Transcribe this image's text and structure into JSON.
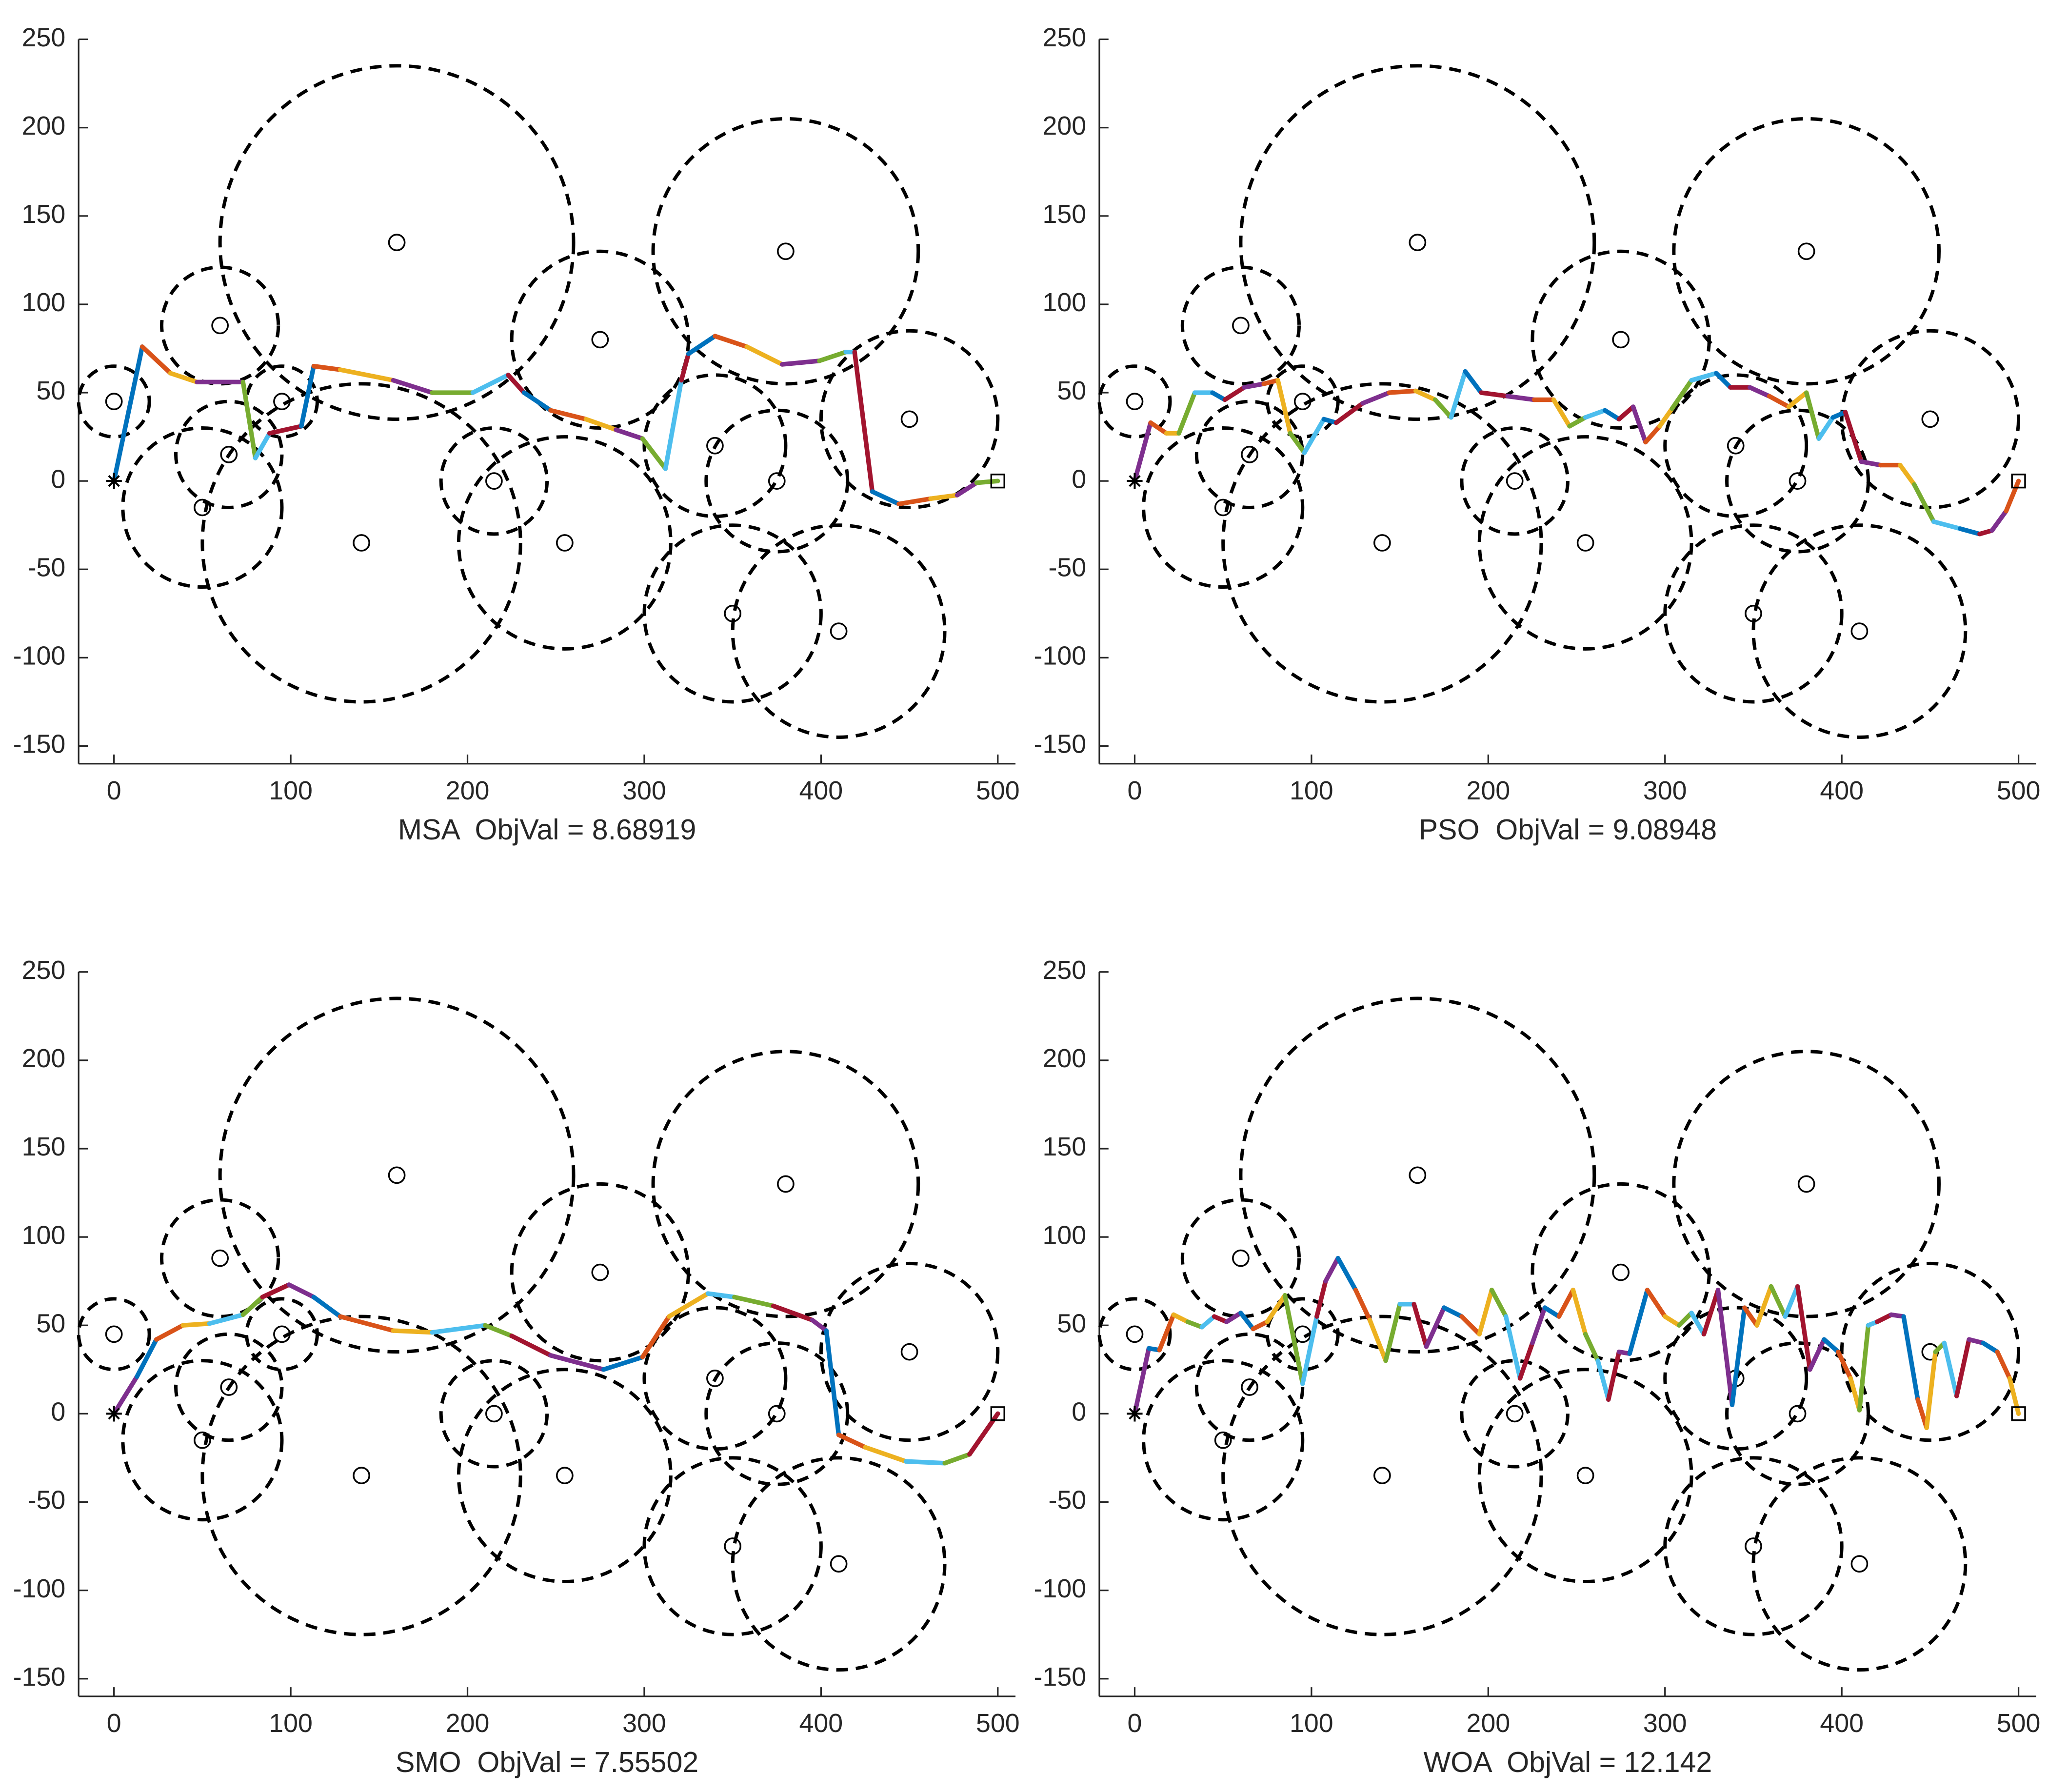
{
  "chart_data": [
    {
      "type": "line",
      "xlabel": "MSA  ObjVal = 8.68919",
      "x": [
        0,
        16,
        32,
        47,
        73,
        80,
        88,
        106,
        113,
        128,
        158,
        180,
        203,
        223,
        232,
        247,
        267,
        284,
        299,
        312,
        321,
        325,
        340,
        358,
        378,
        399,
        414,
        419,
        429,
        444,
        462,
        477,
        488,
        500
      ],
      "values": [
        0,
        76,
        61,
        56,
        56,
        13,
        27,
        31,
        65,
        63,
        57,
        50,
        50,
        60,
        50,
        40,
        35,
        29,
        24,
        7,
        57,
        72,
        82,
        76,
        66,
        68,
        73,
        73,
        -6,
        -13,
        -10,
        -8,
        -1,
        0
      ],
      "colors": [
        "#0072BD",
        "#D95319",
        "#EDB120",
        "#7E2F8E",
        "#77AC30",
        "#4DBEEE",
        "#A2142F"
      ],
      "obstacles": [
        {
          "x": 0,
          "y": 45,
          "r": 20
        },
        {
          "x": 60,
          "y": 88,
          "r": 33
        },
        {
          "x": 160,
          "y": 135,
          "r": 100
        },
        {
          "x": 95,
          "y": 45,
          "r": 20
        },
        {
          "x": 65,
          "y": 15,
          "r": 30
        },
        {
          "x": 50,
          "y": -15,
          "r": 45
        },
        {
          "x": 140,
          "y": -35,
          "r": 90
        },
        {
          "x": 215,
          "y": 0,
          "r": 30
        },
        {
          "x": 255,
          "y": -35,
          "r": 60
        },
        {
          "x": 275,
          "y": 80,
          "r": 50
        },
        {
          "x": 380,
          "y": 130,
          "r": 75
        },
        {
          "x": 340,
          "y": 20,
          "r": 40
        },
        {
          "x": 375,
          "y": 0,
          "r": 40
        },
        {
          "x": 350,
          "y": -75,
          "r": 50
        },
        {
          "x": 410,
          "y": -85,
          "r": 60
        },
        {
          "x": 450,
          "y": 35,
          "r": 50
        }
      ],
      "xlim": [
        -20,
        510
      ],
      "ylim": [
        -160,
        250
      ],
      "xticks": [
        0,
        100,
        200,
        300,
        400,
        500
      ],
      "yticks": [
        -150,
        -100,
        -50,
        0,
        50,
        100,
        150,
        200,
        250
      ]
    },
    {
      "type": "line",
      "xlabel": "PSO  ObjVal = 9.08948",
      "x": [
        0,
        9,
        18,
        25,
        34,
        44,
        51,
        62,
        73,
        81,
        88,
        96,
        107,
        114,
        129,
        144,
        159,
        170,
        179,
        187,
        196,
        211,
        226,
        237,
        246,
        255,
        266,
        274,
        282,
        289,
        297,
        304,
        315,
        329,
        337,
        348,
        359,
        370,
        380,
        387,
        395,
        402,
        411,
        422,
        433,
        441,
        452,
        467,
        478,
        485,
        493,
        500
      ],
      "values": [
        0,
        33,
        27,
        27,
        50,
        50,
        46,
        53,
        55,
        57,
        27,
        16,
        35,
        33,
        44,
        50,
        51,
        46,
        36,
        62,
        50,
        48,
        46,
        46,
        31,
        36,
        40,
        35,
        42,
        22,
        31,
        41,
        57,
        61,
        53,
        53,
        48,
        42,
        50,
        24,
        36,
        39,
        11,
        9,
        9,
        -2,
        -23,
        -27,
        -30,
        -28,
        -17,
        0
      ],
      "colors": [
        "#7E2F8E",
        "#D95319",
        "#EDB120",
        "#77AC30",
        "#4DBEEE",
        "#0072BD",
        "#A2142F"
      ],
      "obstacles": [
        {
          "x": 0,
          "y": 45,
          "r": 20
        },
        {
          "x": 60,
          "y": 88,
          "r": 33
        },
        {
          "x": 160,
          "y": 135,
          "r": 100
        },
        {
          "x": 95,
          "y": 45,
          "r": 20
        },
        {
          "x": 65,
          "y": 15,
          "r": 30
        },
        {
          "x": 50,
          "y": -15,
          "r": 45
        },
        {
          "x": 140,
          "y": -35,
          "r": 90
        },
        {
          "x": 215,
          "y": 0,
          "r": 30
        },
        {
          "x": 255,
          "y": -35,
          "r": 60
        },
        {
          "x": 275,
          "y": 80,
          "r": 50
        },
        {
          "x": 380,
          "y": 130,
          "r": 75
        },
        {
          "x": 340,
          "y": 20,
          "r": 40
        },
        {
          "x": 375,
          "y": 0,
          "r": 40
        },
        {
          "x": 350,
          "y": -75,
          "r": 50
        },
        {
          "x": 410,
          "y": -85,
          "r": 60
        },
        {
          "x": 450,
          "y": 35,
          "r": 50
        }
      ],
      "xlim": [
        -20,
        510
      ],
      "ylim": [
        -160,
        250
      ],
      "xticks": [
        0,
        100,
        200,
        300,
        400,
        500
      ],
      "yticks": [
        -150,
        -100,
        -50,
        0,
        50,
        100,
        150,
        200,
        250
      ]
    },
    {
      "type": "line",
      "xlabel": "SMO  ObjVal = 7.55502",
      "x": [
        0,
        13,
        24,
        39,
        54,
        73,
        84,
        99,
        113,
        128,
        158,
        180,
        210,
        225,
        247,
        277,
        299,
        314,
        336,
        351,
        373,
        395,
        403,
        410,
        425,
        448,
        470,
        484,
        500
      ],
      "values": [
        0,
        21,
        42,
        50,
        51,
        56,
        66,
        73,
        66,
        55,
        47,
        46,
        50,
        44,
        33,
        25,
        32,
        55,
        68,
        66,
        61,
        53,
        47,
        -12,
        -19,
        -27,
        -28,
        -23,
        0
      ],
      "colors": [
        "#7E2F8E",
        "#0072BD",
        "#D95319",
        "#EDB120",
        "#4DBEEE",
        "#77AC30",
        "#A2142F"
      ],
      "obstacles": [
        {
          "x": 0,
          "y": 45,
          "r": 20
        },
        {
          "x": 60,
          "y": 88,
          "r": 33
        },
        {
          "x": 160,
          "y": 135,
          "r": 100
        },
        {
          "x": 95,
          "y": 45,
          "r": 20
        },
        {
          "x": 65,
          "y": 15,
          "r": 30
        },
        {
          "x": 50,
          "y": -15,
          "r": 45
        },
        {
          "x": 140,
          "y": -35,
          "r": 90
        },
        {
          "x": 215,
          "y": 0,
          "r": 30
        },
        {
          "x": 255,
          "y": -35,
          "r": 60
        },
        {
          "x": 275,
          "y": 80,
          "r": 50
        },
        {
          "x": 380,
          "y": 130,
          "r": 75
        },
        {
          "x": 340,
          "y": 20,
          "r": 40
        },
        {
          "x": 375,
          "y": 0,
          "r": 40
        },
        {
          "x": 350,
          "y": -75,
          "r": 50
        },
        {
          "x": 410,
          "y": -85,
          "r": 60
        },
        {
          "x": 450,
          "y": 35,
          "r": 50
        }
      ],
      "xlim": [
        -20,
        510
      ],
      "ylim": [
        -160,
        250
      ],
      "xticks": [
        0,
        100,
        200,
        300,
        400,
        500
      ],
      "yticks": [
        -150,
        -100,
        -50,
        0,
        50,
        100,
        150,
        200,
        250
      ]
    },
    {
      "type": "line",
      "xlabel": "WOA  ObjVal = 12.142",
      "x": [
        0,
        8,
        14,
        22,
        30,
        38,
        45,
        52,
        60,
        67,
        75,
        85,
        95,
        103,
        108,
        115,
        125,
        133,
        142,
        150,
        158,
        165,
        175,
        185,
        195,
        202,
        210,
        218,
        225,
        232,
        240,
        248,
        255,
        262,
        268,
        274,
        280,
        290,
        300,
        308,
        315,
        322,
        330,
        338,
        345,
        352,
        360,
        368,
        375,
        382,
        390,
        398,
        405,
        410,
        415,
        420,
        428,
        435,
        443,
        448,
        453,
        458,
        465,
        472,
        480,
        488,
        495,
        500
      ],
      "values": [
        0,
        37,
        36,
        56,
        52,
        49,
        55,
        52,
        57,
        48,
        52,
        67,
        17,
        55,
        75,
        88,
        70,
        53,
        30,
        62,
        62,
        38,
        60,
        55,
        45,
        70,
        55,
        20,
        40,
        60,
        55,
        70,
        45,
        30,
        8,
        35,
        34,
        70,
        55,
        50,
        57,
        45,
        70,
        5,
        60,
        50,
        72,
        55,
        72,
        25,
        42,
        35,
        20,
        2,
        50,
        52,
        56,
        55,
        8,
        -8,
        35,
        40,
        10,
        42,
        40,
        35,
        20,
        0
      ],
      "colors": [
        "#7E2F8E",
        "#0072BD",
        "#D95319",
        "#EDB120",
        "#77AC30",
        "#4DBEEE",
        "#A2142F"
      ],
      "obstacles": [
        {
          "x": 0,
          "y": 45,
          "r": 20
        },
        {
          "x": 60,
          "y": 88,
          "r": 33
        },
        {
          "x": 160,
          "y": 135,
          "r": 100
        },
        {
          "x": 95,
          "y": 45,
          "r": 20
        },
        {
          "x": 65,
          "y": 15,
          "r": 30
        },
        {
          "x": 50,
          "y": -15,
          "r": 45
        },
        {
          "x": 140,
          "y": -35,
          "r": 90
        },
        {
          "x": 215,
          "y": 0,
          "r": 30
        },
        {
          "x": 255,
          "y": -35,
          "r": 60
        },
        {
          "x": 275,
          "y": 80,
          "r": 50
        },
        {
          "x": 380,
          "y": 130,
          "r": 75
        },
        {
          "x": 340,
          "y": 20,
          "r": 40
        },
        {
          "x": 375,
          "y": 0,
          "r": 40
        },
        {
          "x": 350,
          "y": -75,
          "r": 50
        },
        {
          "x": 410,
          "y": -85,
          "r": 60
        },
        {
          "x": 450,
          "y": 35,
          "r": 50
        }
      ],
      "xlim": [
        -20,
        510
      ],
      "ylim": [
        -160,
        250
      ],
      "xticks": [
        0,
        100,
        200,
        300,
        400,
        500
      ],
      "yticks": [
        -150,
        -100,
        -50,
        0,
        50,
        100,
        150,
        200,
        250
      ]
    }
  ]
}
